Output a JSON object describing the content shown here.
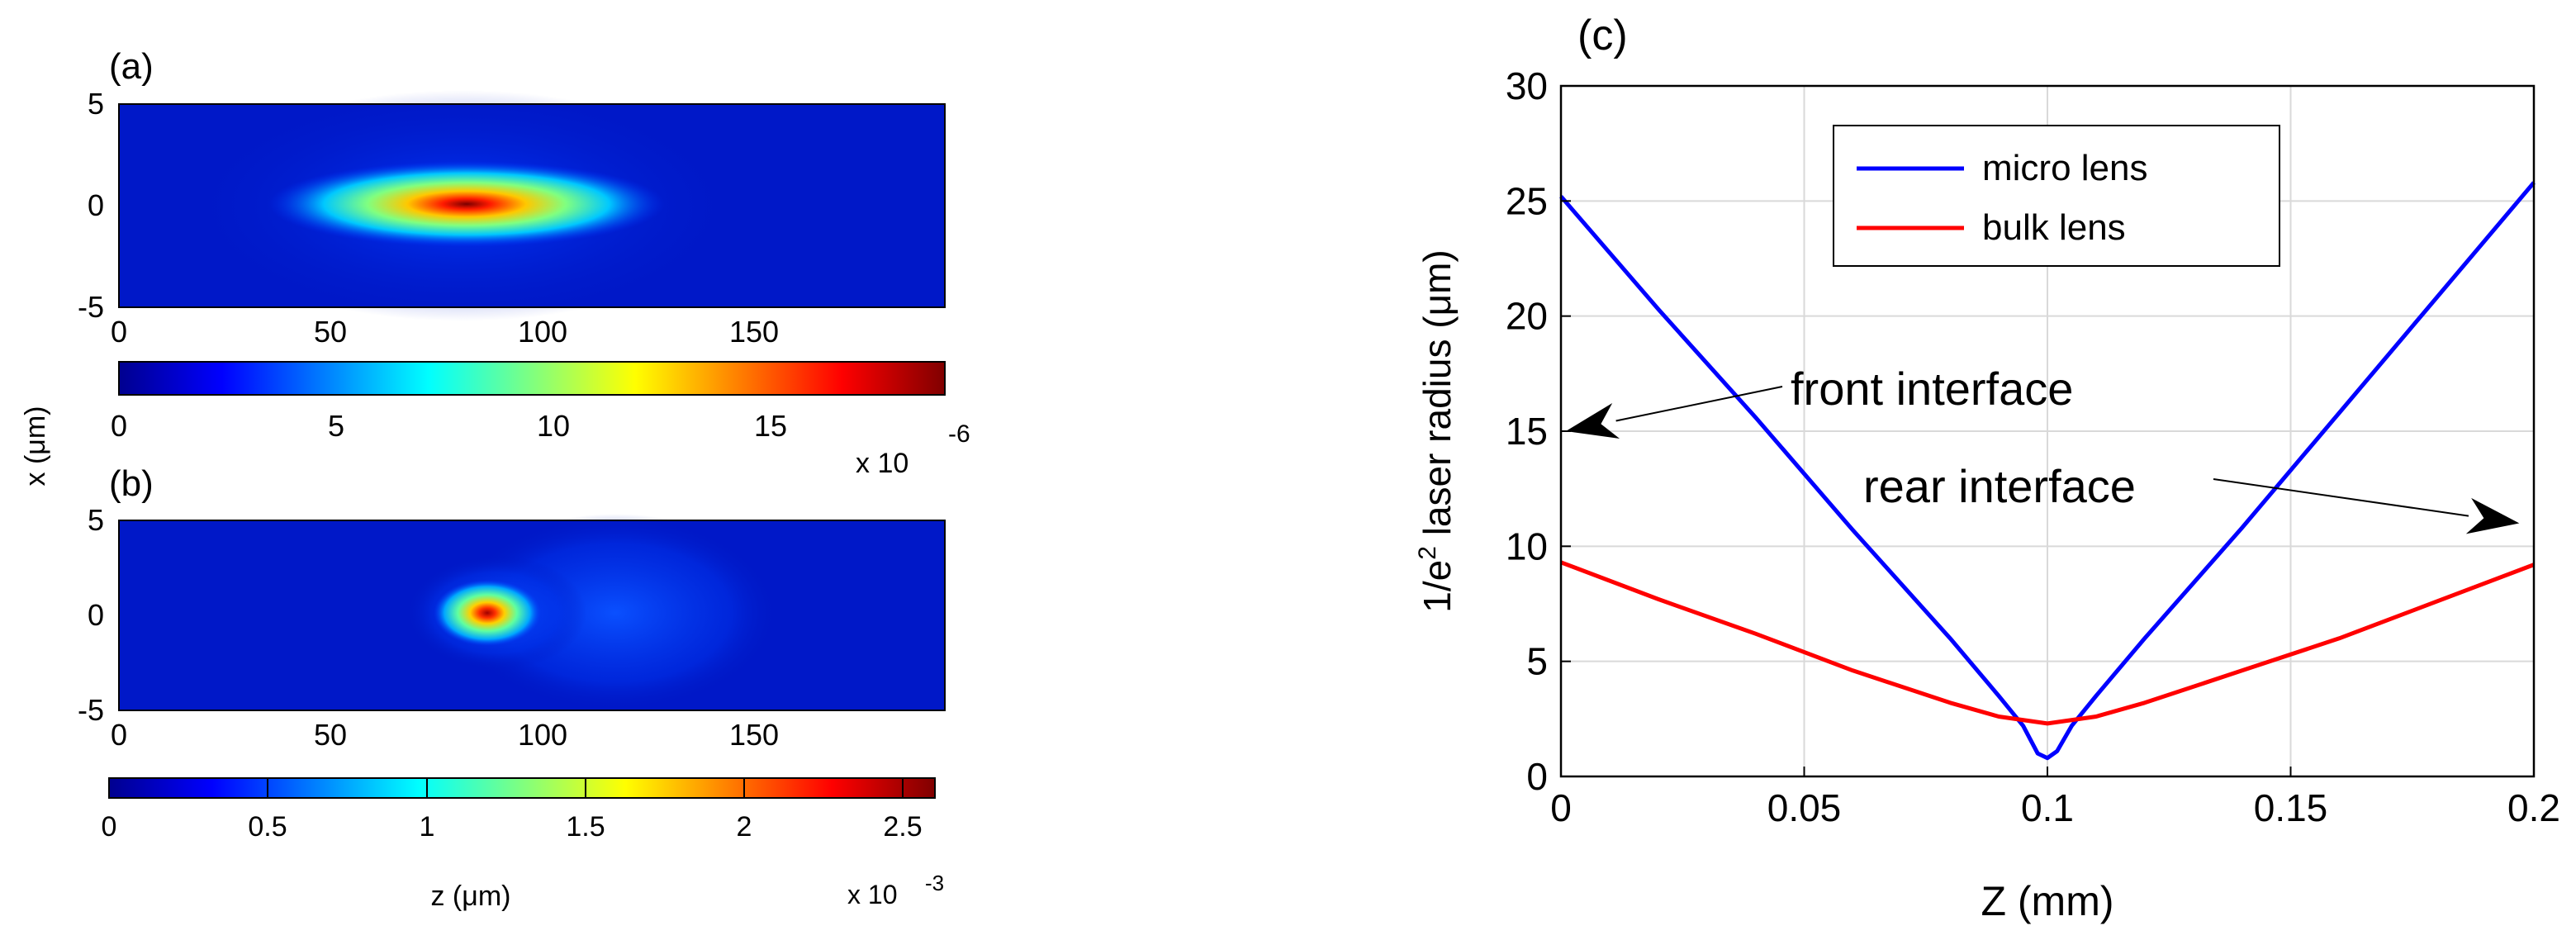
{
  "chart_data": [
    {
      "type": "heatmap",
      "panel_label": "(a)",
      "x": [
        0,
        50,
        100,
        150
      ],
      "y_ticks": [
        5,
        0,
        -5
      ],
      "xlim": [
        0,
        195
      ],
      "ylim": [
        -5,
        5
      ],
      "peak": {
        "x": 80,
        "y": 0
      },
      "colorbar": {
        "ticks": [
          "0",
          "5",
          "10",
          "15"
        ],
        "range": [
          0,
          1.9e-05
        ],
        "exponent_base": "x 10",
        "exponent_power": "-6"
      }
    },
    {
      "type": "heatmap",
      "panel_label": "(b)",
      "x": [
        0,
        50,
        100,
        150
      ],
      "y_ticks": [
        5,
        0,
        -5
      ],
      "xlim": [
        0,
        195
      ],
      "ylim": [
        -5,
        5
      ],
      "peak": {
        "x": 87,
        "y": 0
      },
      "xlabel": "z (μm)",
      "colorbar": {
        "ticks": [
          "0",
          "0.5",
          "1",
          "1.5",
          "2",
          "2.5"
        ],
        "range": [
          0,
          0.0026
        ],
        "exponent_base": "x 10",
        "exponent_power": "-3"
      }
    },
    {
      "type": "line",
      "panel_label": "(c)",
      "xlabel": "Z (mm)",
      "ylabel_prefix": "1/e",
      "ylabel_sup": "2",
      "ylabel_suffix": " laser radius (μm)",
      "xlim": [
        0,
        0.2
      ],
      "ylim": [
        0,
        30
      ],
      "x_ticks": [
        "0",
        "0.05",
        "0.1",
        "0.15",
        "0.2"
      ],
      "y_ticks": [
        "0",
        "5",
        "10",
        "15",
        "20",
        "25",
        "30"
      ],
      "grid": true,
      "legend_position": "top-center",
      "series": [
        {
          "name": "micro lens",
          "color": "#0000ff",
          "x": [
            0,
            0.02,
            0.04,
            0.06,
            0.08,
            0.09,
            0.095,
            0.098,
            0.1,
            0.102,
            0.105,
            0.11,
            0.12,
            0.14,
            0.16,
            0.18,
            0.2
          ],
          "y": [
            25.2,
            20.3,
            15.6,
            10.7,
            6.0,
            3.5,
            2.2,
            1.0,
            0.8,
            1.1,
            2.2,
            3.5,
            6.0,
            10.8,
            15.8,
            20.8,
            25.8
          ]
        },
        {
          "name": "bulk lens",
          "color": "#ff0000",
          "x": [
            0,
            0.02,
            0.04,
            0.06,
            0.08,
            0.09,
            0.1,
            0.11,
            0.12,
            0.14,
            0.16,
            0.18,
            0.2
          ],
          "y": [
            9.3,
            7.7,
            6.2,
            4.6,
            3.2,
            2.6,
            2.3,
            2.6,
            3.2,
            4.6,
            6.0,
            7.6,
            9.2
          ]
        }
      ],
      "annotations": [
        {
          "text": "front interface",
          "arrow_to": {
            "x": 0.001,
            "y": 15.0
          }
        },
        {
          "text": "rear interface",
          "arrow_to": {
            "x": 0.197,
            "y": 11.0
          }
        }
      ]
    }
  ],
  "shared": {
    "ylabel_ab": "x (μm)"
  }
}
